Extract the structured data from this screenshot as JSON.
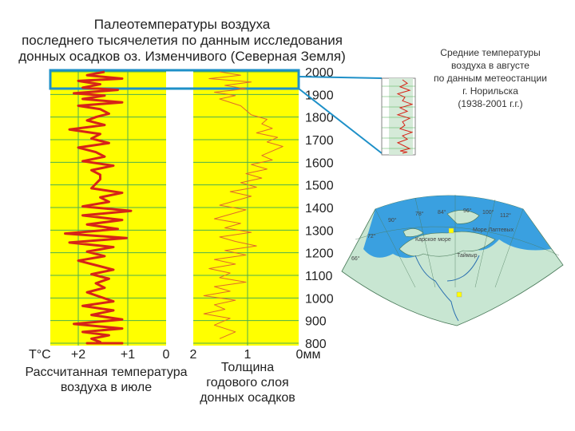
{
  "title_lines": [
    "Палеотемпературы воздуха",
    "последнего тысячелетия по данным исследования",
    "донных осадков оз. Изменчивого (Северная Земля)"
  ],
  "side_caption_lines": [
    "Средние температуры",
    "воздуха в августе",
    "по данным метеостанции",
    "г. Норильска",
    "(1938-2001 г.г.)"
  ],
  "axis": {
    "year_ticks": [
      "2000",
      "1900",
      "1800",
      "1700",
      "1600",
      "1500",
      "1400",
      "1300",
      "1200",
      "1100",
      "1000",
      "900",
      "800"
    ],
    "temp_unit": "T°C",
    "temp_ticks": [
      "+2",
      "+1",
      "0"
    ],
    "thick_ticks": [
      "2",
      "1",
      "0мм"
    ]
  },
  "captions": {
    "left_lines": [
      "Рассчитанная температура",
      "воздуха в июле"
    ],
    "right_lines": [
      "Толщина",
      "годового слоя",
      "донных осадков"
    ]
  },
  "map_labels": {
    "lon_labels": [
      "90°",
      "78°",
      "84°",
      "96°",
      "100°",
      "112°",
      "72°",
      "66°"
    ],
    "place_labels": [
      "Карское море",
      "Море Лаптевых",
      "Таймыр"
    ]
  },
  "colors": {
    "panel_fill": "#ffff00",
    "temperature_curve": "#d62418",
    "thickness_curve": "#e06a2a",
    "highlight_box": "#1e90c8",
    "map_land": "#c8e6d2",
    "map_sea": "#3aa0e0",
    "grid": "#4caf50"
  },
  "chart_data": [
    {
      "type": "line",
      "name": "Рассчитанная температура воздуха в июле",
      "xlabel": "T°C",
      "ylabel": "",
      "xlim": [
        2.6,
        0
      ],
      "ylim": [
        800,
        2000
      ],
      "x_axis_reversed": true,
      "series": [
        {
          "x": [
            1.4,
            1.8,
            1.0,
            2.0,
            1.5,
            1.9,
            1.1,
            2.1,
            1.4,
            1.9,
            1.0,
            2.0,
            1.5,
            1.3,
            1.6,
            1.8,
            1.4,
            2.2,
            1.5,
            1.7,
            1.3,
            2.0,
            1.6,
            1.4,
            1.9,
            1.2,
            1.7,
            1.5,
            1.5,
            1.6,
            1.7,
            1.0,
            1.5,
            1.3,
            1.9,
            0.8,
            1.9,
            1.0,
            1.8,
            1.1,
            2.3,
            0.9,
            2.2,
            1.2,
            1.8,
            1.4,
            2.0,
            1.6,
            1.2,
            1.7,
            1.3,
            1.6,
            1.4,
            1.8,
            1.5,
            1.2,
            1.9,
            1.2,
            1.7,
            1.0,
            2.1,
            1.0,
            1.9,
            1.3,
            1.7,
            1.5,
            1.6,
            1.0,
            1.8,
            1.2,
            1.5,
            1.4
          ],
          "y": [
            2000,
            1985,
            1970,
            1960,
            1945,
            1930,
            1920,
            1905,
            1895,
            1880,
            1865,
            1850,
            1835,
            1815,
            1800,
            1785,
            1765,
            1745,
            1725,
            1705,
            1685,
            1665,
            1645,
            1625,
            1605,
            1585,
            1565,
            1545,
            1525,
            1505,
            1485,
            1465,
            1445,
            1425,
            1405,
            1385,
            1365,
            1345,
            1325,
            1305,
            1285,
            1265,
            1245,
            1225,
            1205,
            1185,
            1165,
            1145,
            1125,
            1105,
            1085,
            1065,
            1045,
            1025,
            1005,
            985,
            965,
            945,
            925,
            905,
            885,
            865,
            850,
            835,
            820,
            805,
            800,
            800,
            800,
            800,
            800,
            800
          ]
        }
      ]
    },
    {
      "type": "line",
      "name": "Толщина годового слоя донных осадков",
      "xlabel": "мм",
      "ylabel": "",
      "xlim": [
        2,
        0
      ],
      "ylim": [
        800,
        2000
      ],
      "x_axis_reversed": true,
      "series": [
        {
          "x": [
            1.5,
            1.1,
            1.7,
            0.9,
            1.4,
            1.0,
            1.6,
            1.2,
            1.5,
            1.3,
            1.1,
            1.0,
            0.9,
            0.6,
            0.7,
            0.5,
            0.8,
            0.4,
            0.6,
            0.3,
            0.5,
            0.7,
            0.5,
            0.9,
            0.6,
            1.0,
            0.7,
            1.1,
            0.8,
            1.3,
            0.9,
            1.2,
            1.5,
            1.0,
            1.3,
            1.6,
            1.1,
            1.4,
            0.9,
            1.5,
            1.2,
            0.8,
            1.4,
            1.0,
            1.6,
            1.2,
            1.7,
            1.3,
            1.5,
            1.0,
            1.6,
            1.3,
            1.8,
            1.2,
            1.6,
            1.4,
            1.8,
            1.3,
            1.6,
            1.2,
            1.5
          ],
          "y": [
            2000,
            1985,
            1970,
            1955,
            1940,
            1925,
            1910,
            1895,
            1880,
            1865,
            1850,
            1830,
            1810,
            1790,
            1770,
            1750,
            1730,
            1710,
            1690,
            1670,
            1650,
            1630,
            1610,
            1590,
            1570,
            1550,
            1530,
            1510,
            1490,
            1470,
            1450,
            1430,
            1410,
            1390,
            1370,
            1350,
            1330,
            1310,
            1290,
            1270,
            1250,
            1230,
            1210,
            1190,
            1170,
            1150,
            1130,
            1110,
            1090,
            1070,
            1050,
            1030,
            1010,
            990,
            970,
            950,
            930,
            910,
            880,
            850,
            820
          ]
        }
      ]
    },
    {
      "type": "line",
      "name": "Средние температуры воздуха в августе (Норильск)",
      "xlabel": "",
      "ylabel": "",
      "ylim": [
        1938,
        2001
      ],
      "series": [
        {
          "x": [
            0.5,
            0.7,
            0.4,
            0.8,
            0.3,
            0.6,
            0.5,
            0.9,
            0.4,
            0.7,
            0.3,
            0.8,
            0.5,
            0.6,
            0.4,
            0.9,
            0.5,
            0.7,
            0.3,
            0.6,
            0.8,
            0.4,
            0.7,
            0.5
          ],
          "y": [
            2001,
            1998,
            1995,
            1992,
            1989,
            1986,
            1983,
            1980,
            1977,
            1974,
            1971,
            1968,
            1965,
            1962,
            1959,
            1956,
            1953,
            1950,
            1947,
            1944,
            1942,
            1940,
            1939,
            1938
          ]
        }
      ]
    }
  ]
}
